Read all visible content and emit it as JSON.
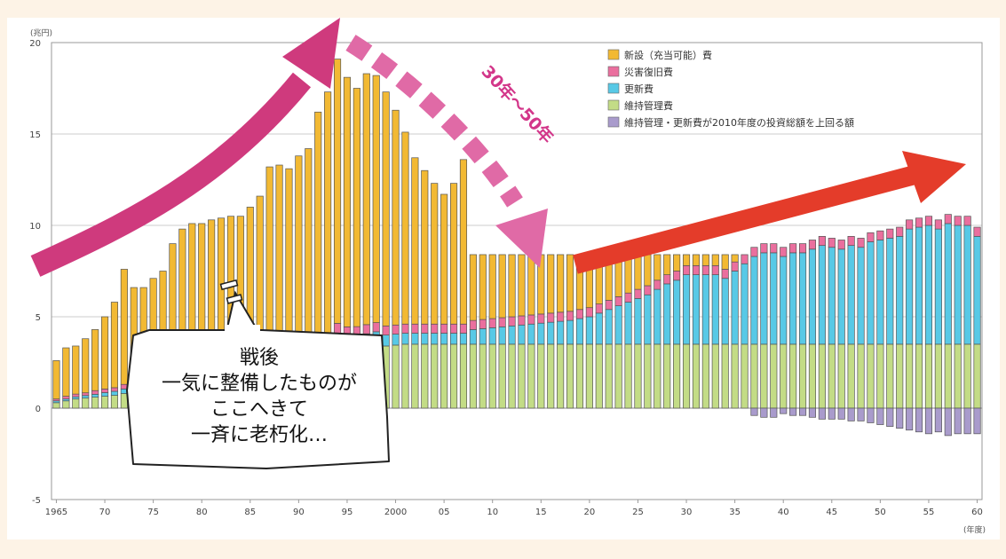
{
  "chart_data": {
    "type": "bar",
    "unit_label": "(兆円)",
    "xlabel": "(年度)",
    "ylim": [
      -5,
      20
    ],
    "yticks": [
      -5,
      0,
      5,
      10,
      15,
      20
    ],
    "x_tick_labels": [
      "1965",
      "70",
      "75",
      "80",
      "85",
      "90",
      "95",
      "2000",
      "05",
      "10",
      "15",
      "20",
      "25",
      "30",
      "35",
      "40",
      "45",
      "50",
      "55",
      "60"
    ],
    "x_start_year": 1965,
    "x_end_year": 2060,
    "grid": true,
    "legend_position": "top-right",
    "series": [
      {
        "name": "新設（充当可能）費",
        "color": "#f2b933"
      },
      {
        "name": "災害復旧費",
        "color": "#ea6f9e"
      },
      {
        "name": "更新費",
        "color": "#58c9e6"
      },
      {
        "name": "維持管理費",
        "color": "#c3dc86"
      },
      {
        "name": "維持管理・更新費が2010年度の投資総額を上回る額",
        "color": "#a99bcc"
      }
    ],
    "years": [
      1965,
      1966,
      1967,
      1968,
      1969,
      1970,
      1971,
      1972,
      1973,
      1974,
      1975,
      1976,
      1977,
      1978,
      1979,
      1980,
      1981,
      1982,
      1983,
      1984,
      1985,
      1986,
      1987,
      1988,
      1989,
      1990,
      1991,
      1992,
      1993,
      1994,
      1995,
      1996,
      1997,
      1998,
      1999,
      2000,
      2001,
      2002,
      2003,
      2004,
      2005,
      2006,
      2007,
      2008,
      2009,
      2010,
      2011,
      2012,
      2013,
      2014,
      2015,
      2016,
      2017,
      2018,
      2019,
      2020,
      2021,
      2022,
      2023,
      2024,
      2025,
      2026,
      2027,
      2028,
      2029,
      2030,
      2031,
      2032,
      2033,
      2034,
      2035,
      2036,
      2037,
      2038,
      2039,
      2040,
      2041,
      2042,
      2043,
      2044,
      2045,
      2046,
      2047,
      2048,
      2049,
      2050,
      2051,
      2052,
      2053,
      2054,
      2055,
      2056,
      2057,
      2058,
      2059,
      2060
    ],
    "totals": [
      2.6,
      3.3,
      3.4,
      3.8,
      4.3,
      5.0,
      5.8,
      7.6,
      6.6,
      6.6,
      7.1,
      7.5,
      9.0,
      9.8,
      10.1,
      10.1,
      10.3,
      10.4,
      10.5,
      10.5,
      11.0,
      11.6,
      13.2,
      13.3,
      13.1,
      13.8,
      14.2,
      16.2,
      17.3,
      19.1,
      18.1,
      17.5,
      18.3,
      18.2,
      17.3,
      16.3,
      15.1,
      13.7,
      13.0,
      12.3,
      11.7,
      12.3,
      13.6,
      8.4,
      8.4,
      8.4,
      8.4,
      8.4,
      8.4,
      8.4,
      8.4,
      8.4,
      8.4,
      8.4,
      8.4,
      8.4,
      8.4,
      8.4,
      8.4,
      8.4,
      8.4,
      8.4,
      8.4,
      8.4,
      8.4,
      8.4,
      8.4,
      8.4,
      8.4,
      8.4,
      8.4,
      8.4,
      8.4,
      8.4,
      8.4,
      8.4,
      8.4,
      8.4,
      8.4,
      8.4,
      8.4,
      8.4,
      8.4,
      8.4,
      8.4,
      8.4,
      8.4,
      8.4,
      8.4,
      8.4,
      8.4,
      8.4,
      8.4,
      8.4,
      8.4,
      8.4
    ],
    "disaster": [
      0.1,
      0.15,
      0.15,
      0.15,
      0.2,
      0.2,
      0.2,
      0.25,
      0.25,
      0.25,
      0.25,
      0.3,
      0.3,
      0.3,
      0.3,
      0.3,
      0.3,
      0.35,
      0.35,
      0.35,
      0.35,
      0.4,
      0.4,
      0.4,
      0.4,
      0.4,
      0.45,
      0.45,
      0.5,
      0.9,
      0.6,
      0.5,
      0.5,
      0.5,
      0.5,
      0.5,
      0.5,
      0.5,
      0.5,
      0.5,
      0.5,
      0.5,
      0.5,
      0.5,
      0.5,
      0.5,
      0.5,
      0.5,
      0.5,
      0.5,
      0.5,
      0.5,
      0.5,
      0.5,
      0.5,
      0.5,
      0.5,
      0.5,
      0.5,
      0.5,
      0.5,
      0.5,
      0.5,
      0.5,
      0.5,
      0.5,
      0.5,
      0.5,
      0.5,
      0.5,
      0.5,
      0.5,
      0.5,
      0.5,
      0.5,
      0.5,
      0.5,
      0.5,
      0.5,
      0.5,
      0.5,
      0.5,
      0.5,
      0.5,
      0.5,
      0.5,
      0.5,
      0.5,
      0.5,
      0.5,
      0.5,
      0.5,
      0.5,
      0.5,
      0.5,
      0.5
    ],
    "renewal": [
      0.1,
      0.1,
      0.12,
      0.14,
      0.16,
      0.2,
      0.22,
      0.25,
      0.28,
      0.3,
      0.33,
      0.36,
      0.4,
      0.43,
      0.46,
      0.5,
      0.53,
      0.56,
      0.6,
      0.62,
      0.65,
      0.68,
      0.7,
      0.72,
      0.74,
      0.76,
      0.78,
      0.8,
      0.82,
      0.84,
      0.85,
      0.86,
      0.87,
      0.88,
      0.6,
      0.6,
      0.6,
      0.6,
      0.6,
      0.6,
      0.6,
      0.6,
      0.6,
      0.8,
      0.85,
      0.9,
      0.95,
      1.0,
      1.05,
      1.1,
      1.15,
      1.2,
      1.25,
      1.3,
      1.4,
      1.5,
      1.7,
      1.9,
      2.1,
      2.3,
      2.5,
      2.7,
      3.0,
      3.3,
      3.5,
      3.8,
      3.8,
      3.8,
      3.8,
      3.6,
      4.0,
      4.4,
      4.8,
      5.0,
      5.0,
      4.8,
      5.0,
      5.0,
      5.2,
      5.4,
      5.3,
      5.2,
      5.4,
      5.3,
      5.6,
      5.7,
      5.8,
      5.9,
      6.3,
      6.4,
      6.5,
      6.3,
      6.6,
      6.5,
      6.5,
      5.9
    ],
    "maintenance": [
      0.3,
      0.4,
      0.5,
      0.55,
      0.6,
      0.65,
      0.7,
      0.8,
      0.85,
      0.9,
      1.0,
      1.1,
      1.2,
      1.3,
      1.4,
      1.5,
      1.6,
      1.7,
      1.8,
      1.9,
      2.0,
      2.1,
      2.2,
      2.3,
      2.4,
      2.5,
      2.6,
      2.7,
      2.8,
      2.9,
      3.0,
      3.1,
      3.2,
      3.3,
      3.4,
      3.45,
      3.5,
      3.5,
      3.5,
      3.5,
      3.5,
      3.5,
      3.5,
      3.5,
      3.5,
      3.5,
      3.5,
      3.5,
      3.5,
      3.5,
      3.5,
      3.5,
      3.5,
      3.5,
      3.5,
      3.5,
      3.5,
      3.5,
      3.5,
      3.5,
      3.5,
      3.5,
      3.5,
      3.5,
      3.5,
      3.5,
      3.5,
      3.5,
      3.5,
      3.5,
      3.5,
      3.5,
      3.5,
      3.5,
      3.5,
      3.5,
      3.5,
      3.5,
      3.5,
      3.5,
      3.5,
      3.5,
      3.5,
      3.5,
      3.5,
      3.5,
      3.5,
      3.5,
      3.5,
      3.5,
      3.5,
      3.5,
      3.5,
      3.5,
      3.5,
      3.5
    ],
    "excess": [
      0,
      0,
      0,
      0,
      0,
      0,
      0,
      0,
      0,
      0,
      0,
      0,
      0,
      0,
      0,
      0,
      0,
      0,
      0,
      0,
      0,
      0,
      0,
      0,
      0,
      0,
      0,
      0,
      0,
      0,
      0,
      0,
      0,
      0,
      0,
      0,
      0,
      0,
      0,
      0,
      0,
      0,
      0,
      0,
      0,
      0,
      0,
      0,
      0,
      0,
      0,
      0,
      0,
      0,
      0,
      0,
      0,
      0,
      0,
      0,
      0,
      0,
      0,
      0,
      0,
      0,
      0,
      0,
      0,
      0,
      0,
      0,
      0.4,
      0.5,
      0.5,
      0.3,
      0.4,
      0.4,
      0.5,
      0.6,
      0.6,
      0.6,
      0.7,
      0.7,
      0.8,
      0.9,
      1.0,
      1.1,
      1.2,
      1.3,
      1.4,
      1.3,
      1.5,
      1.4,
      1.4,
      1.4
    ]
  },
  "annotations": {
    "period_label": "30年〜50年",
    "bubble_lines": [
      "戦後",
      "一気に整備したものが",
      "ここへきて",
      "一斉に老朽化…"
    ]
  },
  "colors": {
    "background": "#fdf3e6",
    "plot_background": "#ffffff",
    "arrow_up": "#cf3a7d",
    "arrow_down": "#e06aa6",
    "arrow_right": "#e43c2a"
  }
}
